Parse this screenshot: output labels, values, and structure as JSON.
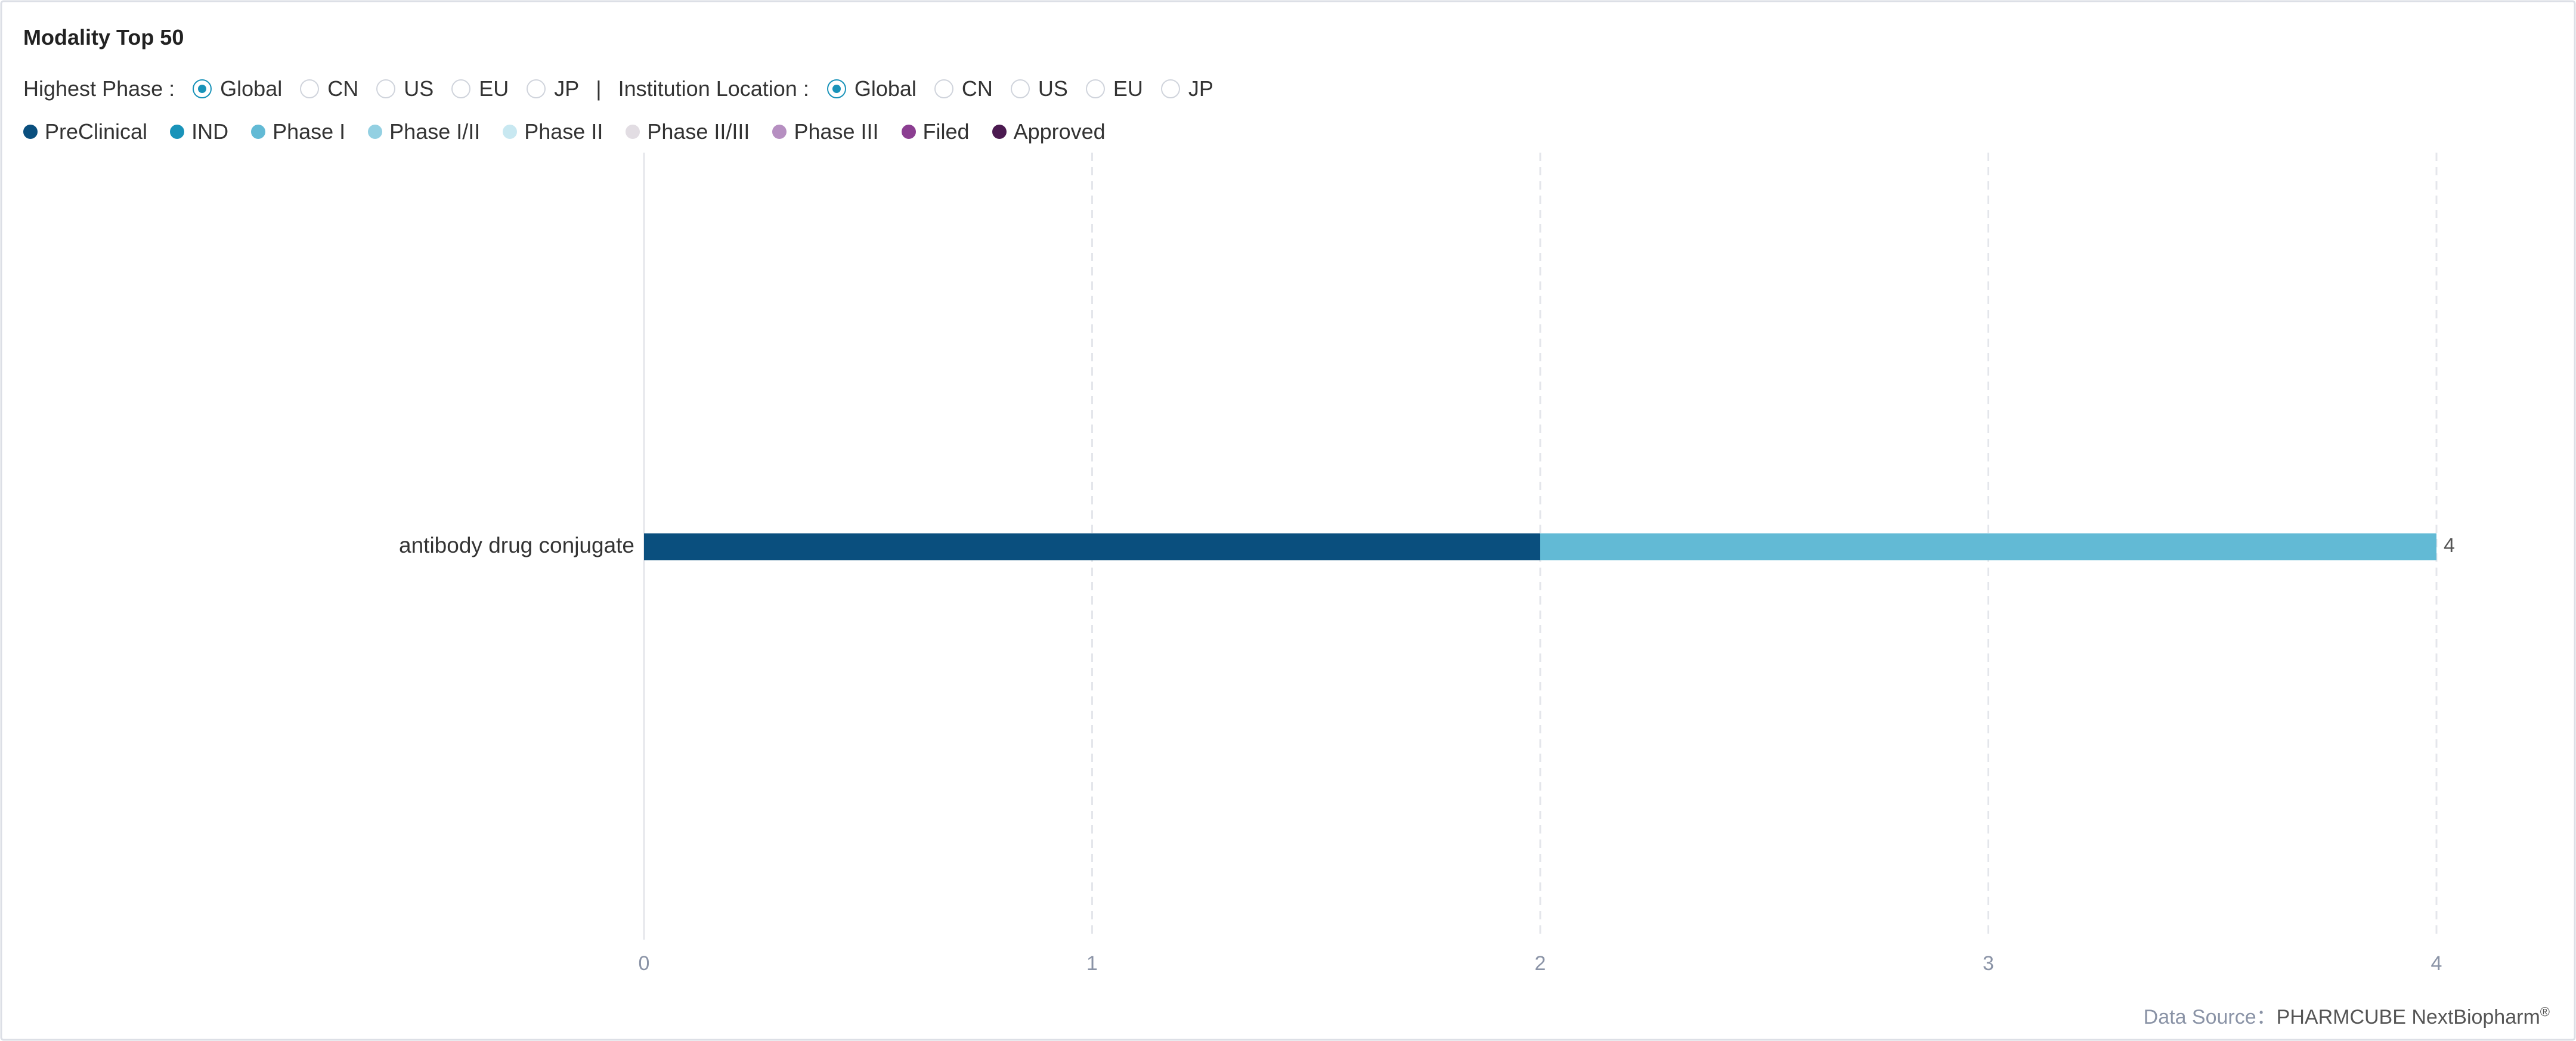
{
  "title": "Modality Top 50",
  "filters": [
    {
      "label": "Highest Phase :",
      "options": [
        "Global",
        "CN",
        "US",
        "EU",
        "JP"
      ],
      "selected_index": 0
    },
    {
      "label": "Institution Location :",
      "options": [
        "Global",
        "CN",
        "US",
        "EU",
        "JP"
      ],
      "selected_index": 0
    }
  ],
  "separator": "|",
  "chart_data": {
    "type": "bar",
    "orientation": "horizontal",
    "stacked": true,
    "categories": [
      "antibody drug conjugate"
    ],
    "series": [
      {
        "name": "PreClinical",
        "color": "#0a4f7e",
        "values": [
          2
        ]
      },
      {
        "name": "IND",
        "color": "#1993b9",
        "values": [
          0
        ]
      },
      {
        "name": "Phase I",
        "color": "#62bad5",
        "values": [
          2
        ]
      },
      {
        "name": "Phase I/II",
        "color": "#93d0e2",
        "values": [
          0
        ]
      },
      {
        "name": "Phase II",
        "color": "#c8e8f1",
        "values": [
          0
        ]
      },
      {
        "name": "Phase II/III",
        "color": "#e2dde3",
        "values": [
          0
        ]
      },
      {
        "name": "Phase III",
        "color": "#b68fc1",
        "values": [
          0
        ]
      },
      {
        "name": "Filed",
        "color": "#8b3e91",
        "values": [
          0
        ]
      },
      {
        "name": "Approved",
        "color": "#4b1a50",
        "values": [
          0
        ]
      }
    ],
    "totals": [
      4
    ],
    "xlim": [
      0,
      4
    ],
    "xticks": [
      0,
      1,
      2,
      3,
      4
    ],
    "grid": true
  },
  "footer": {
    "source_label": "Data Source：",
    "source": "PHARMCUBE NextBiopharm",
    "mark": "®"
  }
}
